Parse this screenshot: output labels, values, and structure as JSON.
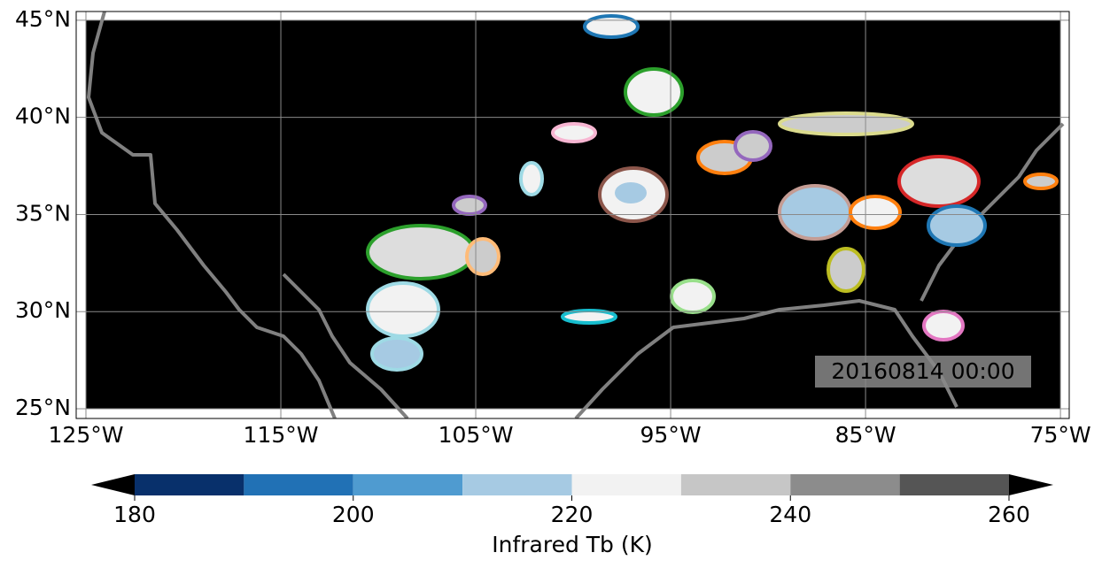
{
  "map": {
    "xlim": [
      -125.5,
      -74.55
    ],
    "ylim": [
      24.5,
      45.45
    ],
    "xticks": [
      {
        "value": -125,
        "label": "125°W"
      },
      {
        "value": -115,
        "label": "115°W"
      },
      {
        "value": -105,
        "label": "105°W"
      },
      {
        "value": -95,
        "label": "95°W"
      },
      {
        "value": -85,
        "label": "85°W"
      },
      {
        "value": -75,
        "label": "75°W"
      }
    ],
    "yticks": [
      {
        "value": 25,
        "label": "25°N"
      },
      {
        "value": 30,
        "label": "30°N"
      },
      {
        "value": 35,
        "label": "35°N"
      },
      {
        "value": 40,
        "label": "40°N"
      },
      {
        "value": 45,
        "label": "45°N"
      }
    ],
    "grid": true,
    "timestamp": "20160814 00:00"
  },
  "colorbar": {
    "label": "Infrared Tb (K)",
    "levels": [
      180,
      190,
      200,
      210,
      220,
      230,
      240,
      250,
      260
    ],
    "colors": [
      "#08306b",
      "#2171b5",
      "#4f9bd0",
      "#a6cae3",
      "#f2f2f2",
      "#c6c6c6",
      "#8c8c8c",
      "#555555"
    ],
    "extend_color": "#000000",
    "ticks": [
      180,
      200,
      220,
      240,
      260
    ]
  }
}
